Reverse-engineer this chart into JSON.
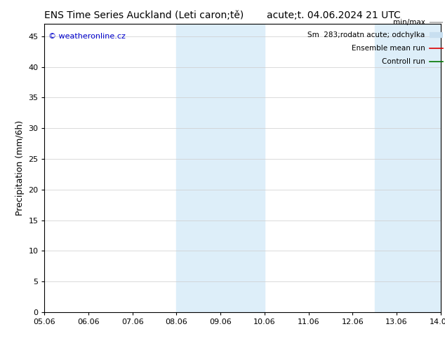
{
  "title_left": "ENS Time Series Auckland (Leti caron;tě)",
  "title_right": "acute;t. 04.06.2024 21 UTC",
  "ylabel": "Precipitation (mm/6h)",
  "watermark": "© weatheronline.cz",
  "watermark_color": "#0000cc",
  "xlim_start": 0,
  "xlim_end": 9,
  "ylim": [
    0,
    47
  ],
  "yticks": [
    0,
    5,
    10,
    15,
    20,
    25,
    30,
    35,
    40,
    45
  ],
  "xtick_labels": [
    "05.06",
    "06.06",
    "07.06",
    "08.06",
    "09.06",
    "10.06",
    "11.06",
    "12.06",
    "13.06",
    "14.06"
  ],
  "background_color": "#ffffff",
  "plot_bg_color": "#ffffff",
  "shaded_regions": [
    {
      "xstart": 3.0,
      "xend": 4.0,
      "color": "#ddeef9"
    },
    {
      "xstart": 4.0,
      "xend": 5.0,
      "color": "#ddeef9"
    },
    {
      "xstart": 7.5,
      "xend": 8.5,
      "color": "#ddeef9"
    },
    {
      "xstart": 8.5,
      "xend": 9.0,
      "color": "#ddeef9"
    }
  ],
  "legend_entries": [
    {
      "label": "min/max",
      "color": "#aaaaaa",
      "lw": 1.2,
      "style": "hline"
    },
    {
      "label": "Sm  283;rodatn acute; odchylka",
      "color": "#c8dff0",
      "lw": 6,
      "style": "hline"
    },
    {
      "label": "Ensemble mean run",
      "color": "#dd0000",
      "lw": 1.2,
      "style": "line"
    },
    {
      "label": "Controll run",
      "color": "#007700",
      "lw": 1.2,
      "style": "line"
    }
  ],
  "title_fontsize": 10,
  "tick_fontsize": 8,
  "ylabel_fontsize": 9,
  "legend_fontsize": 7.5
}
